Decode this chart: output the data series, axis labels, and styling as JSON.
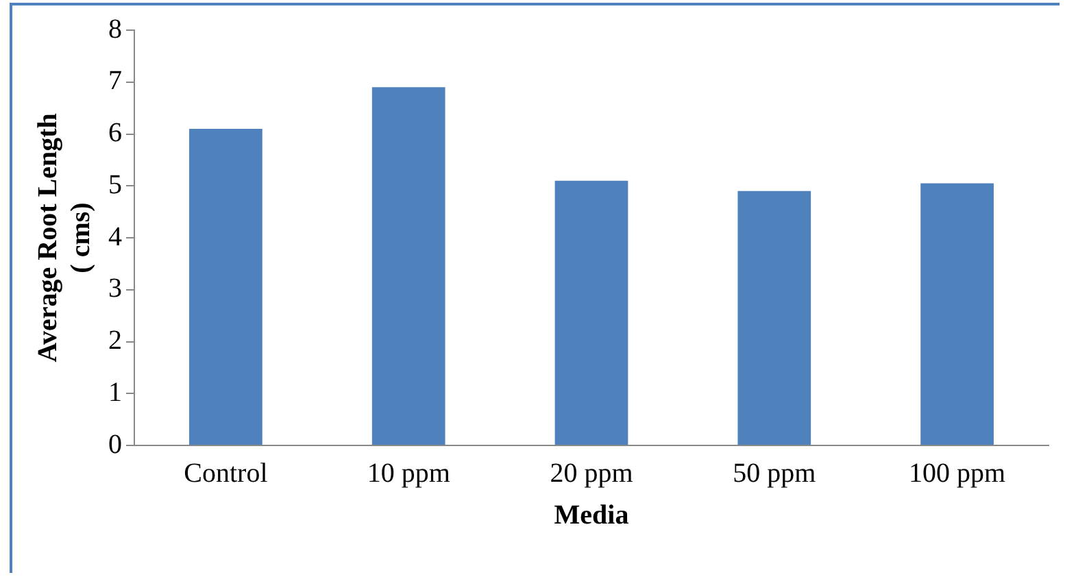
{
  "chart_data": {
    "type": "bar",
    "xlabel": "Media",
    "ylabel": "Average Root Length\n( cms)",
    "categories": [
      "Control",
      "10 ppm",
      "20 ppm",
      "50 ppm",
      "100 ppm"
    ],
    "values": [
      6.1,
      6.9,
      5.1,
      4.9,
      5.05
    ],
    "color": "#4f81bd",
    "ylim": [
      0,
      8
    ],
    "yticks": [
      0,
      1,
      2,
      3,
      4,
      5,
      6,
      7,
      8
    ],
    "grid": false,
    "legend": false
  }
}
